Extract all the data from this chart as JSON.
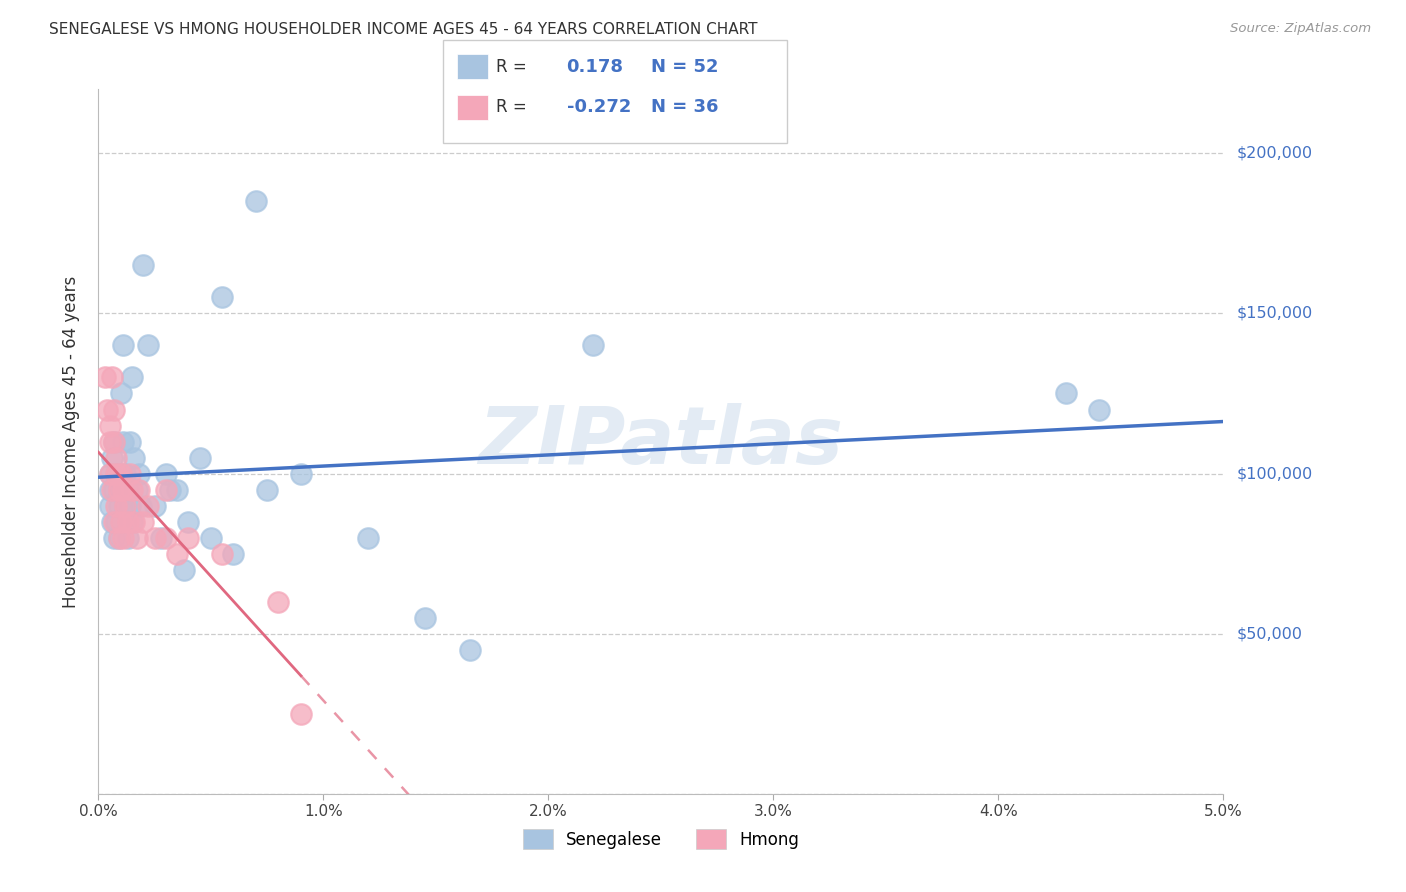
{
  "title": "SENEGALESE VS HMONG HOUSEHOLDER INCOME AGES 45 - 64 YEARS CORRELATION CHART",
  "source": "Source: ZipAtlas.com",
  "ylabel": "Householder Income Ages 45 - 64 years",
  "xlim": [
    0.0,
    0.05
  ],
  "ylim": [
    0,
    220000
  ],
  "yticks": [
    0,
    50000,
    100000,
    150000,
    200000
  ],
  "ytick_labels": [
    "",
    "$50,000",
    "$100,000",
    "$150,000",
    "$200,000"
  ],
  "xticks": [
    0.0,
    0.01,
    0.02,
    0.03,
    0.04,
    0.05
  ],
  "xtick_labels": [
    "0.0%",
    "1.0%",
    "2.0%",
    "3.0%",
    "4.0%",
    "5.0%"
  ],
  "senegalese_R": 0.178,
  "senegalese_N": 52,
  "hmong_R": -0.272,
  "hmong_N": 36,
  "senegalese_color": "#a8c4e0",
  "hmong_color": "#f4a7b9",
  "senegalese_line_color": "#4472c4",
  "hmong_line_color": "#e06880",
  "watermark": "ZIPatlas",
  "senegalese_x": [
    0.0005,
    0.0005,
    0.0005,
    0.0006,
    0.0006,
    0.0007,
    0.0007,
    0.0007,
    0.0008,
    0.0008,
    0.0009,
    0.0009,
    0.0009,
    0.001,
    0.001,
    0.001,
    0.0011,
    0.0011,
    0.0012,
    0.0012,
    0.0013,
    0.0013,
    0.0014,
    0.0014,
    0.0015,
    0.0015,
    0.0016,
    0.0017,
    0.0018,
    0.0019,
    0.002,
    0.0022,
    0.0025,
    0.0028,
    0.003,
    0.0032,
    0.0035,
    0.0038,
    0.004,
    0.0045,
    0.005,
    0.0055,
    0.006,
    0.007,
    0.0075,
    0.009,
    0.012,
    0.0145,
    0.0165,
    0.022,
    0.043,
    0.0445
  ],
  "senegalese_y": [
    95000,
    90000,
    100000,
    85000,
    105000,
    110000,
    80000,
    95000,
    100000,
    85000,
    90000,
    95000,
    80000,
    100000,
    125000,
    95000,
    140000,
    110000,
    90000,
    100000,
    80000,
    95000,
    110000,
    90000,
    130000,
    85000,
    105000,
    95000,
    100000,
    90000,
    165000,
    140000,
    90000,
    80000,
    100000,
    95000,
    95000,
    70000,
    85000,
    105000,
    80000,
    155000,
    75000,
    185000,
    95000,
    100000,
    80000,
    55000,
    45000,
    140000,
    125000,
    120000
  ],
  "hmong_x": [
    0.0003,
    0.0004,
    0.0005,
    0.0005,
    0.0005,
    0.0006,
    0.0006,
    0.0007,
    0.0007,
    0.0007,
    0.0008,
    0.0008,
    0.0008,
    0.0009,
    0.0009,
    0.001,
    0.001,
    0.0011,
    0.0011,
    0.0012,
    0.0013,
    0.0014,
    0.0015,
    0.0016,
    0.0017,
    0.0018,
    0.002,
    0.0022,
    0.0025,
    0.003,
    0.003,
    0.0035,
    0.004,
    0.0055,
    0.008,
    0.009
  ],
  "hmong_y": [
    130000,
    120000,
    110000,
    115000,
    100000,
    130000,
    95000,
    120000,
    110000,
    85000,
    105000,
    100000,
    90000,
    95000,
    80000,
    100000,
    85000,
    95000,
    80000,
    90000,
    85000,
    100000,
    95000,
    85000,
    80000,
    95000,
    85000,
    90000,
    80000,
    80000,
    95000,
    75000,
    80000,
    75000,
    60000,
    25000
  ]
}
